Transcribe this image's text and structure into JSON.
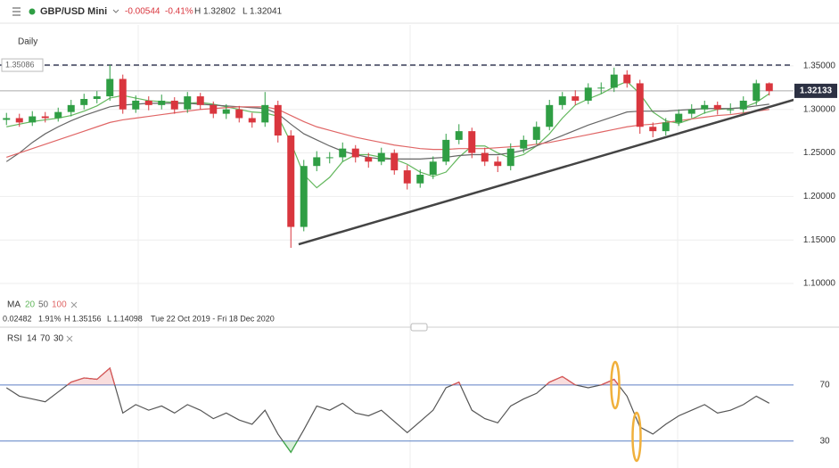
{
  "header": {
    "symbol": "GBP/USD Mini",
    "change": "-0.00544",
    "change_pct": "-0.41%",
    "high": "H 1.32802",
    "low": "L 1.32041"
  },
  "chart_data": [
    {
      "type": "candlestick",
      "timeframe": "Daily",
      "categories": [
        null,
        null,
        null,
        null,
        null,
        null,
        null,
        null,
        null,
        null,
        null,
        null,
        null,
        null,
        null,
        null,
        null,
        null,
        null,
        null,
        null,
        null,
        null,
        null,
        null,
        null,
        null,
        null,
        null,
        null,
        null,
        null,
        null,
        null,
        null,
        null,
        null,
        null,
        null,
        null,
        null,
        null,
        null,
        null,
        null,
        null,
        null,
        null,
        null,
        null,
        null,
        null,
        null,
        null,
        null,
        null,
        null,
        null,
        null,
        null
      ],
      "open": [
        1.288,
        1.29,
        1.285,
        1.292,
        1.29,
        1.297,
        1.305,
        1.312,
        1.315,
        1.335,
        1.3,
        1.31,
        1.305,
        1.31,
        1.3,
        1.315,
        1.305,
        1.295,
        1.3,
        1.29,
        1.285,
        1.305,
        1.27,
        1.165,
        1.235,
        1.245,
        1.245,
        1.255,
        1.245,
        1.24,
        1.25,
        1.23,
        1.215,
        1.225,
        1.24,
        1.265,
        1.275,
        1.25,
        1.24,
        1.235,
        1.255,
        1.265,
        1.28,
        1.305,
        1.315,
        1.31,
        1.325,
        1.325,
        1.34,
        1.33,
        1.28,
        1.275,
        1.285,
        1.295,
        1.3,
        1.305,
        1.3,
        1.3,
        1.31,
        1.33
      ],
      "high": [
        1.296,
        1.295,
        1.298,
        1.297,
        1.302,
        1.311,
        1.318,
        1.321,
        1.351,
        1.34,
        1.316,
        1.315,
        1.317,
        1.314,
        1.32,
        1.319,
        1.309,
        1.306,
        1.304,
        1.296,
        1.32,
        1.31,
        1.276,
        1.242,
        1.252,
        1.251,
        1.262,
        1.259,
        1.25,
        1.256,
        1.254,
        1.236,
        1.231,
        1.246,
        1.272,
        1.283,
        1.279,
        1.256,
        1.246,
        1.261,
        1.27,
        1.286,
        1.311,
        1.32,
        1.322,
        1.33,
        1.331,
        1.348,
        1.345,
        1.334,
        1.285,
        1.29,
        1.3,
        1.306,
        1.31,
        1.309,
        1.307,
        1.315,
        1.334,
        1.331
      ],
      "low": [
        1.282,
        1.28,
        1.281,
        1.285,
        1.286,
        1.292,
        1.3,
        1.307,
        1.31,
        1.295,
        1.296,
        1.299,
        1.3,
        1.295,
        1.296,
        1.3,
        1.29,
        1.289,
        1.285,
        1.279,
        1.28,
        1.262,
        1.141,
        1.16,
        1.229,
        1.238,
        1.24,
        1.239,
        1.233,
        1.236,
        1.225,
        1.208,
        1.21,
        1.22,
        1.236,
        1.26,
        1.244,
        1.235,
        1.228,
        1.23,
        1.25,
        1.26,
        1.276,
        1.3,
        1.305,
        1.306,
        1.318,
        1.32,
        1.325,
        1.272,
        1.268,
        1.27,
        1.281,
        1.29,
        1.295,
        1.294,
        1.295,
        1.296,
        1.305,
        1.316
      ],
      "close": [
        1.29,
        1.285,
        1.292,
        1.29,
        1.297,
        1.305,
        1.312,
        1.315,
        1.335,
        1.3,
        1.31,
        1.305,
        1.31,
        1.3,
        1.315,
        1.305,
        1.295,
        1.3,
        1.29,
        1.285,
        1.305,
        1.27,
        1.165,
        1.235,
        1.245,
        1.245,
        1.255,
        1.245,
        1.24,
        1.25,
        1.23,
        1.215,
        1.225,
        1.24,
        1.265,
        1.275,
        1.25,
        1.24,
        1.235,
        1.255,
        1.265,
        1.28,
        1.305,
        1.315,
        1.31,
        1.325,
        1.325,
        1.34,
        1.33,
        1.28,
        1.275,
        1.285,
        1.295,
        1.3,
        1.305,
        1.3,
        1.3,
        1.31,
        1.33,
        1.321
      ],
      "up_color": "#2f9e44",
      "down_color": "#d9363e",
      "ma_label": "MA",
      "series": [
        {
          "name": "20",
          "color": "#63b75d",
          "values": [
            1.28,
            1.283,
            1.286,
            1.288,
            1.29,
            1.293,
            1.298,
            1.304,
            1.313,
            1.316,
            1.313,
            1.31,
            1.309,
            1.308,
            1.307,
            1.308,
            1.306,
            1.303,
            1.3,
            1.297,
            1.296,
            1.292,
            1.262,
            1.225,
            1.21,
            1.222,
            1.24,
            1.248,
            1.248,
            1.245,
            1.243,
            1.237,
            1.228,
            1.223,
            1.228,
            1.245,
            1.258,
            1.258,
            1.25,
            1.244,
            1.248,
            1.258,
            1.272,
            1.29,
            1.305,
            1.312,
            1.318,
            1.326,
            1.332,
            1.318,
            1.297,
            1.287,
            1.284,
            1.289,
            1.296,
            1.3,
            1.301,
            1.302,
            1.308,
            1.318
          ]
        },
        {
          "name": "50",
          "color": "#666666",
          "values": [
            1.24,
            1.25,
            1.262,
            1.272,
            1.28,
            1.287,
            1.293,
            1.298,
            1.303,
            1.305,
            1.306,
            1.307,
            1.307,
            1.307,
            1.307,
            1.306,
            1.305,
            1.304,
            1.303,
            1.302,
            1.301,
            1.295,
            1.283,
            1.272,
            1.265,
            1.258,
            1.252,
            1.248,
            1.245,
            1.243,
            1.243,
            1.243,
            1.243,
            1.244,
            1.245,
            1.247,
            1.248,
            1.248,
            1.248,
            1.25,
            1.253,
            1.258,
            1.264,
            1.27,
            1.276,
            1.282,
            1.287,
            1.292,
            1.297,
            1.298,
            1.298,
            1.298,
            1.299,
            1.3,
            1.301,
            1.301,
            1.301,
            1.302,
            1.304,
            1.306
          ]
        },
        {
          "name": "100",
          "color": "#e06666",
          "values": [
            1.245,
            1.25,
            1.255,
            1.26,
            1.265,
            1.27,
            1.275,
            1.28,
            1.285,
            1.288,
            1.29,
            1.292,
            1.294,
            1.296,
            1.298,
            1.3,
            1.301,
            1.302,
            1.303,
            1.303,
            1.303,
            1.3,
            1.293,
            1.286,
            1.28,
            1.276,
            1.272,
            1.268,
            1.265,
            1.262,
            1.259,
            1.257,
            1.255,
            1.254,
            1.254,
            1.255,
            1.255,
            1.255,
            1.256,
            1.257,
            1.258,
            1.26,
            1.262,
            1.265,
            1.268,
            1.271,
            1.274,
            1.277,
            1.28,
            1.282,
            1.283,
            1.285,
            1.287,
            1.289,
            1.291,
            1.293,
            1.294,
            1.296,
            1.298,
            1.3
          ]
        }
      ],
      "stats": [
        "0.02482",
        "1.91%",
        "H 1.35156",
        "L 1.14098",
        "Tue 22 Oct 2019 - Fri 18 Dec 2020"
      ],
      "reference_line": {
        "value": 1.35086,
        "label": "1.35086"
      },
      "last_price": {
        "value": 1.32133,
        "label": "1.32133"
      },
      "trendline": {
        "x": [
          22.6,
          60.9
        ],
        "values": [
          1.145,
          1.311
        ]
      },
      "ylim": [
        1.0775,
        1.397
      ],
      "yticks": [
        {
          "value": 1.1,
          "label": "1.10000"
        },
        {
          "value": 1.15,
          "label": "1.15000"
        },
        {
          "value": 1.2,
          "label": "1.20000"
        },
        {
          "value": 1.25,
          "label": "1.25000"
        },
        {
          "value": 1.3,
          "label": "1.30000"
        },
        {
          "value": 1.35,
          "label": "1.35000"
        }
      ],
      "grid": true
    },
    {
      "type": "line",
      "legend_label": "RSI",
      "params": [
        "14",
        "70",
        "30"
      ],
      "values": [
        68,
        62,
        60,
        58,
        65,
        72,
        75,
        74,
        82,
        50,
        56,
        52,
        55,
        50,
        56,
        52,
        46,
        50,
        45,
        42,
        52,
        35,
        22,
        38,
        55,
        52,
        57,
        50,
        48,
        52,
        44,
        36,
        44,
        52,
        68,
        72,
        52,
        46,
        43,
        55,
        60,
        64,
        72,
        76,
        70,
        68,
        70,
        74,
        62,
        40,
        35,
        42,
        48,
        52,
        56,
        50,
        52,
        56,
        62,
        57
      ],
      "color": "#555555",
      "overbought_color": "#e05555",
      "oversold_color": "#3fae49",
      "level_color": "#5b7fc7",
      "ylim": [
        14,
        108
      ],
      "yticks": [
        30,
        70
      ]
    }
  ]
}
